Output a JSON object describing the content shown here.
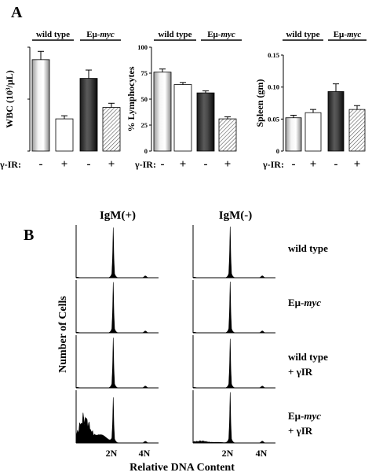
{
  "panel_a": {
    "label": "A",
    "group_labels": {
      "wt": "wild type",
      "emu": "Eμ-",
      "myc": "myc"
    },
    "treatment_label": "γ-IR:",
    "minus": "-",
    "plus": "+"
  },
  "panel_b": {
    "label": "B",
    "col_labels": [
      "IgM(+)",
      "IgM(-)"
    ],
    "row_labels": [
      {
        "line1": "wild type",
        "line2": "",
        "italic_part": ""
      },
      {
        "line1": "Eμ-",
        "line2": "",
        "italic_part": "myc"
      },
      {
        "line1": "wild type",
        "line2": "+ γIR",
        "italic_part": ""
      },
      {
        "line1": "Eμ-",
        "line2": "+ γIR",
        "italic_part": "myc"
      }
    ],
    "ylabel": "Number of Cells",
    "xlabel": "Relative DNA Content",
    "xticks": [
      "2N",
      "4N"
    ]
  },
  "chart_data": [
    {
      "type": "bar",
      "ylabel": "WBC (10³/μL)",
      "ylim": [
        0,
        10
      ],
      "yticks": [
        "0",
        "5",
        "10"
      ],
      "categories": [
        "wild type -",
        "wild type +",
        "Eμ-myc -",
        "Eμ-myc +"
      ],
      "values": [
        8.8,
        3.1,
        7.0,
        4.2
      ],
      "errors": [
        0.8,
        0.3,
        0.8,
        0.4
      ]
    },
    {
      "type": "bar",
      "ylabel": "% Lymphocytes",
      "ylim": [
        0,
        100
      ],
      "yticks": [
        "0",
        "25",
        "50",
        "75",
        "100"
      ],
      "categories": [
        "wild type -",
        "wild type +",
        "Eμ-myc -",
        "Eμ-myc +"
      ],
      "values": [
        76,
        64,
        56,
        31
      ],
      "errors": [
        3,
        2,
        2,
        2
      ]
    },
    {
      "type": "bar",
      "ylabel": "Spleen (gm)",
      "ylim": [
        0,
        0.15
      ],
      "yticks": [
        "0",
        "0.05",
        "0.10",
        "0.15"
      ],
      "categories": [
        "wild type -",
        "wild type +",
        "Eμ-myc -",
        "Eμ-myc +"
      ],
      "values": [
        0.052,
        0.06,
        0.093,
        0.065
      ],
      "errors": [
        0.004,
        0.005,
        0.012,
        0.006
      ]
    }
  ],
  "histograms": {
    "type": "area",
    "x_unit": "relative DNA content",
    "panels": [
      {
        "column": "IgM(+)",
        "row": "wild type",
        "peaks": [
          {
            "x": "2N",
            "height": 0.92
          }
        ],
        "sub_g1": 0.0
      },
      {
        "column": "IgM(-)",
        "row": "wild type",
        "peaks": [
          {
            "x": "2N",
            "height": 0.95
          }
        ],
        "sub_g1": 0.0
      },
      {
        "column": "IgM(+)",
        "row": "Eμ-myc",
        "peaks": [
          {
            "x": "2N",
            "height": 0.93
          }
        ],
        "sub_g1": 0.0
      },
      {
        "column": "IgM(-)",
        "row": "Eμ-myc",
        "peaks": [
          {
            "x": "2N",
            "height": 0.95
          }
        ],
        "sub_g1": 0.0
      },
      {
        "column": "IgM(+)",
        "row": "wild type + γIR",
        "peaks": [
          {
            "x": "2N",
            "height": 0.92
          }
        ],
        "sub_g1": 0.0
      },
      {
        "column": "IgM(-)",
        "row": "wild type + γIR",
        "peaks": [
          {
            "x": "2N",
            "height": 0.9
          }
        ],
        "sub_g1": 0.0
      },
      {
        "column": "IgM(+)",
        "row": "Eμ-myc + γIR",
        "peaks": [
          {
            "x": "2N",
            "height": 0.82
          }
        ],
        "sub_g1": 0.65
      },
      {
        "column": "IgM(-)",
        "row": "Eμ-myc + γIR",
        "peaks": [
          {
            "x": "2N",
            "height": 0.93
          }
        ],
        "sub_g1": 0.05
      }
    ]
  }
}
